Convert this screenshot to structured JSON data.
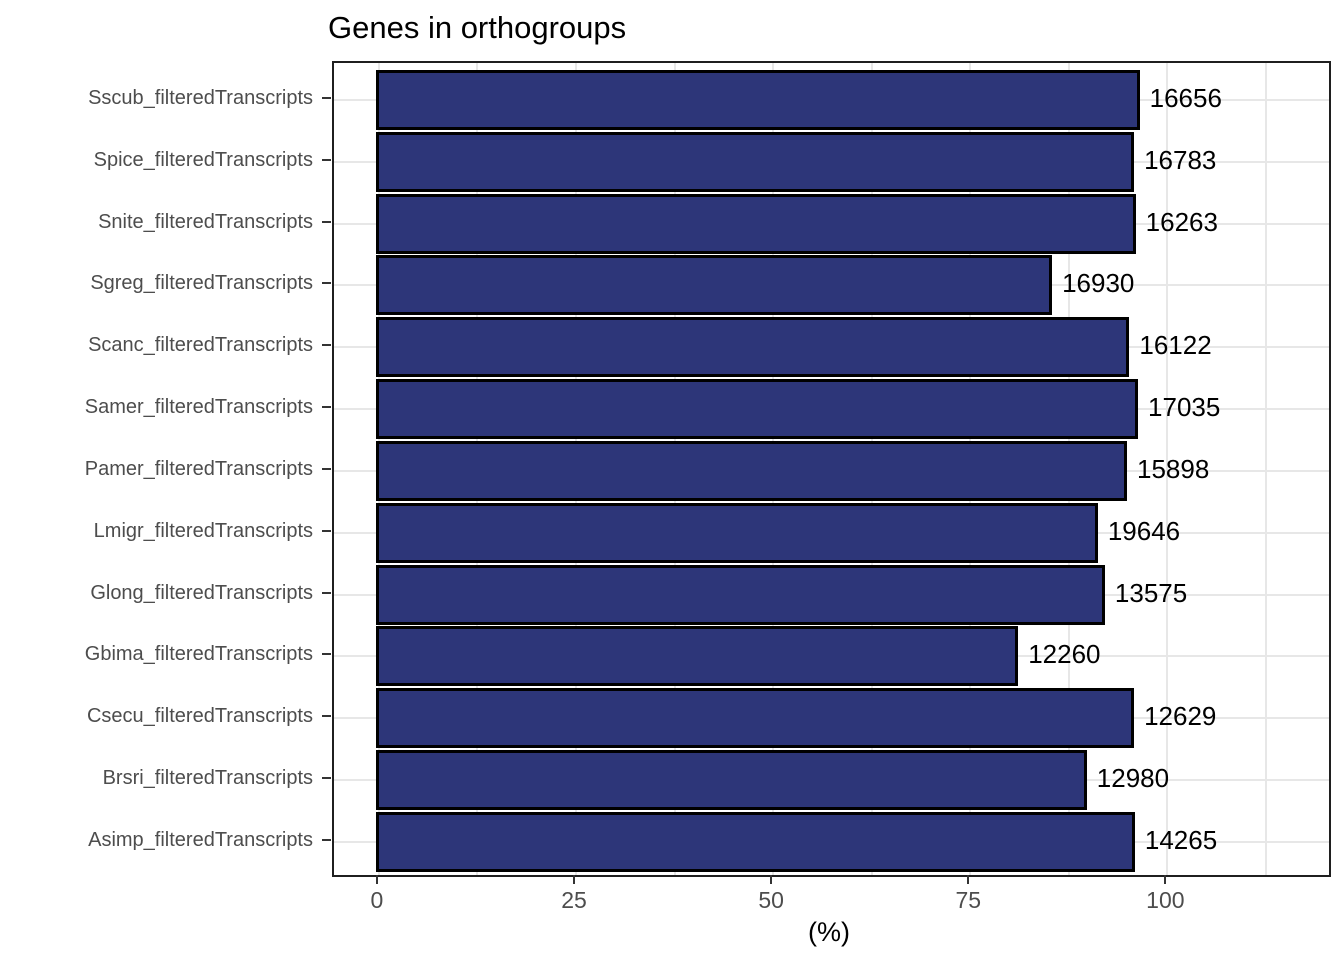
{
  "chart_data": {
    "type": "bar",
    "orientation": "horizontal",
    "title": "Genes in orthogroups",
    "xlabel": "(%)",
    "ylabel": "",
    "xlim": [
      -5.7,
      120.5
    ],
    "x_major_ticks": [
      0,
      25,
      50,
      75,
      100
    ],
    "x_minor_gridlines": [
      12.5,
      37.5,
      62.5,
      87.5,
      112.5
    ],
    "grid": "on",
    "legend": "none",
    "categories": [
      "Sscub_filteredTranscripts",
      "Spice_filteredTranscripts",
      "Snite_filteredTranscripts",
      "Sgreg_filteredTranscripts",
      "Scanc_filteredTranscripts",
      "Samer_filteredTranscripts",
      "Pamer_filteredTranscripts",
      "Lmigr_filteredTranscripts",
      "Glong_filteredTranscripts",
      "Gbima_filteredTranscripts",
      "Csecu_filteredTranscripts",
      "Brsri_filteredTranscripts",
      "Asimp_filteredTranscripts"
    ],
    "series": [
      {
        "name": "percent_genes_in_orthogroups",
        "values": [
          96.1,
          95.4,
          95.6,
          85.0,
          94.8,
          95.9,
          94.5,
          90.8,
          91.7,
          80.7,
          95.4,
          89.4,
          95.5
        ]
      },
      {
        "name": "gene_count_labels",
        "values": [
          16656,
          16783,
          16263,
          16930,
          16122,
          17035,
          15898,
          19646,
          13575,
          12260,
          12629,
          12980,
          14265
        ]
      }
    ],
    "colors": {
      "bar_fill": "#2d3679",
      "bar_stroke": "#000000",
      "panel_border": "#1f1f1f",
      "gridline": "#e7e7e7",
      "axis_text": "#4d4d4d",
      "tick_mark": "#333333",
      "title_text": "#000000",
      "value_label_text": "#000000"
    }
  }
}
